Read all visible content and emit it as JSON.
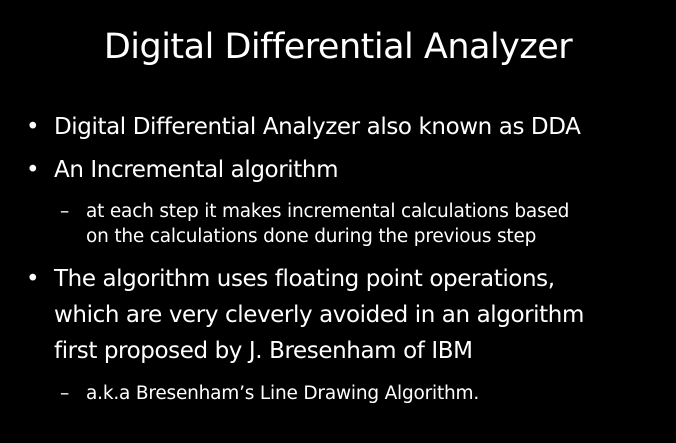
{
  "slide": {
    "title": "Digital Differential Analyzer",
    "bullet_marker": "•",
    "sub_marker": "–",
    "bullets": [
      {
        "lines": [
          "Digital Differential Analyzer also known as DDA"
        ]
      },
      {
        "lines": [
          "An Incremental algorithm"
        ],
        "sub": {
          "lines": [
            "at each step it makes incremental calculations based",
            "on the calculations done during the previous step"
          ]
        }
      },
      {
        "lines": [
          "The algorithm uses floating point operations,",
          "which are very cleverly avoided in an algorithm",
          "first proposed by J. Bresenham of IBM"
        ],
        "sub": {
          "lines": [
            "a.k.a Bresenham’s Line Drawing Algorithm."
          ]
        }
      }
    ]
  }
}
